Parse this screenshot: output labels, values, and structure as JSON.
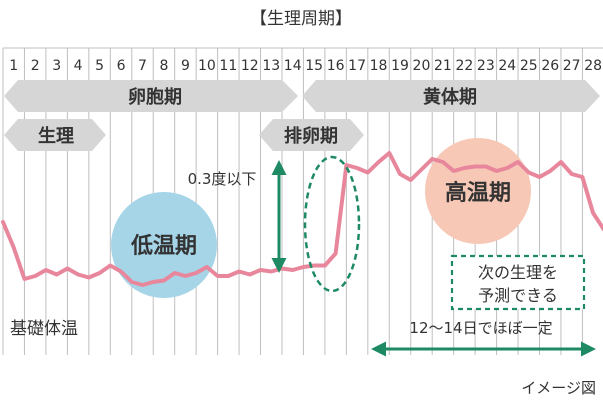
{
  "title": "【生理周期】",
  "days": [
    "1",
    "2",
    "3",
    "4",
    "5",
    "6",
    "7",
    "8",
    "9",
    "10",
    "11",
    "12",
    "13",
    "14",
    "15",
    "16",
    "17",
    "18",
    "19",
    "20",
    "21",
    "22",
    "23",
    "24",
    "25",
    "26",
    "27",
    "28"
  ],
  "phases": {
    "follicular": "卵胞期",
    "luteal": "黄体期",
    "menstruation": "生理",
    "ovulation": "排卵期"
  },
  "labels": {
    "temp_diff": "0.3度以下",
    "low_temp": "低温期",
    "high_temp": "高温期",
    "next_period_line1": "次の生理を",
    "next_period_line2": "予測できる",
    "bbt": "基礎体温",
    "duration": "12～14日でほぼ一定",
    "caption": "イメージ図"
  },
  "colors": {
    "grid": "#bfbfbf",
    "arrow_gray": "#d6d6d6",
    "line_pink": "#e8879c",
    "green": "#1e8a64",
    "blue_circle": "#a6d5e8",
    "peach_circle": "#f7c8b6",
    "text": "#333333"
  },
  "chart_data": {
    "type": "line",
    "series": [
      {
        "x": [
          0.5,
          1,
          1.5,
          2,
          2.5,
          3,
          3.5,
          4,
          4.5,
          5,
          5.5,
          6,
          6.5,
          7,
          7.5,
          8,
          8.5,
          9,
          9.5,
          10,
          10.5,
          11,
          11.5,
          12,
          12.5,
          13,
          13.5,
          14,
          14.5,
          15,
          15.5,
          16,
          16.5,
          17,
          17.5,
          18,
          18.5,
          19,
          19.5,
          20,
          20.5,
          21,
          21.5,
          22,
          22.5,
          23,
          23.5,
          24,
          24.5,
          25,
          25.5,
          26,
          26.5,
          27,
          27.5,
          28,
          28.5
        ],
        "values": [
          0.52,
          0.35,
          0.14,
          0.16,
          0.2,
          0.17,
          0.21,
          0.17,
          0.15,
          0.18,
          0.23,
          0.19,
          0.12,
          0.1,
          0.12,
          0.13,
          0.18,
          0.16,
          0.18,
          0.22,
          0.16,
          0.16,
          0.19,
          0.17,
          0.2,
          0.19,
          0.21,
          0.2,
          0.22,
          0.23,
          0.23,
          0.31,
          0.9,
          0.88,
          0.85,
          0.92,
          0.98,
          0.84,
          0.8,
          0.87,
          0.94,
          0.92,
          0.86,
          0.88,
          0.89,
          0.89,
          0.86,
          0.88,
          0.92,
          0.85,
          0.82,
          0.86,
          0.92,
          0.84,
          0.82,
          0.58,
          0.47
        ]
      }
    ]
  }
}
